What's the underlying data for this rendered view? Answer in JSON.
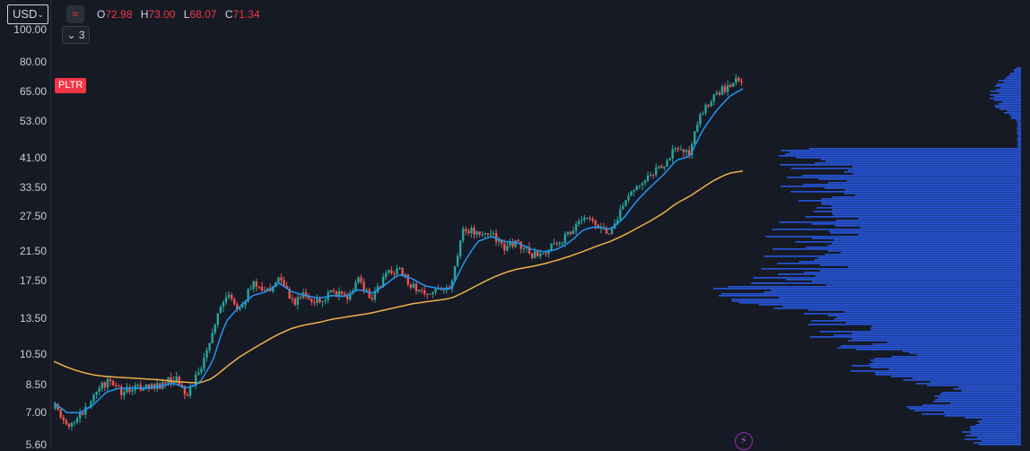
{
  "currency": {
    "label": "USD",
    "caret": "⌄"
  },
  "legend": {
    "indicator_icon": "wave-icon",
    "open_label": "O",
    "open": "72.98",
    "high_label": "H",
    "high": "73.00",
    "low_label": "L",
    "low": "68.07",
    "close_label": "C",
    "close": "71.34",
    "value_color": "#f23645"
  },
  "collapse_button": {
    "label": "3",
    "icon": "chevron-down-icon"
  },
  "symbol": {
    "label": "PLTR",
    "color": "#f23645"
  },
  "price_axis": {
    "ticks": [
      "100.00",
      "80.00",
      "65.00",
      "53.00",
      "41.00",
      "33.50",
      "27.50",
      "21.50",
      "17.50",
      "13.50",
      "10.50",
      "8.50",
      "7.00",
      "5.60"
    ],
    "scale": "log"
  },
  "colors": {
    "background": "#161a25",
    "up": "#26a69a",
    "down": "#ef5350",
    "ma_short": "#2196f3",
    "ma_long": "#f0b04b",
    "volume_profile": "#2962ff"
  },
  "replay_icon": "lightning-icon",
  "chart_data": {
    "type": "line",
    "title": "",
    "scale": "log",
    "ylim": [
      5.4,
      110
    ],
    "series": [
      {
        "name": "",
        "kind": "close",
        "values": [
          7.2,
          6.4,
          7.0,
          7.9,
          8.8,
          8.1,
          8.4,
          8.3,
          8.5,
          8.9,
          8.0,
          9.4,
          12.5,
          15.8,
          14.5,
          17.0,
          16.0,
          18.5,
          15.0,
          16.0,
          14.8,
          16.5,
          15.5,
          17.6,
          15.1,
          18.3,
          19.0,
          17.0,
          16.1,
          16.8,
          16.6,
          25.5,
          24.0,
          24.5,
          22.0,
          23.0,
          21.0,
          21.5,
          22.5,
          24.5,
          27.0,
          25.5,
          24.0,
          29.0,
          33.5,
          36.0,
          39.0,
          44.0,
          42.0,
          57.0,
          63.0,
          68.0,
          71.3
        ]
      },
      {
        "name": "",
        "kind": "ma_short",
        "values": [
          7.5,
          7.0,
          7.0,
          7.4,
          8.1,
          8.3,
          8.3,
          8.3,
          8.4,
          8.6,
          8.3,
          8.6,
          10.0,
          13.2,
          14.6,
          15.8,
          16.2,
          17.2,
          16.2,
          15.8,
          15.5,
          15.8,
          15.7,
          16.5,
          16.0,
          17.0,
          18.3,
          17.8,
          16.9,
          16.6,
          16.5,
          20.0,
          23.0,
          23.8,
          23.0,
          22.8,
          21.8,
          21.4,
          21.8,
          23.0,
          25.0,
          25.5,
          25.0,
          27.0,
          30.5,
          33.5,
          36.5,
          40.5,
          41.5,
          50.0,
          57.0,
          63.0,
          66.5
        ]
      },
      {
        "name": "",
        "kind": "ma_long",
        "values": [
          10.0,
          9.6,
          9.3,
          9.1,
          9.0,
          8.95,
          8.9,
          8.85,
          8.8,
          8.7,
          8.65,
          8.6,
          8.9,
          9.6,
          10.3,
          10.9,
          11.5,
          12.1,
          12.6,
          12.9,
          13.1,
          13.4,
          13.6,
          13.8,
          14.0,
          14.3,
          14.6,
          14.9,
          15.1,
          15.3,
          15.5,
          16.2,
          17.0,
          17.8,
          18.5,
          19.0,
          19.3,
          19.7,
          20.2,
          20.8,
          21.5,
          22.3,
          23.0,
          24.0,
          25.2,
          26.5,
          28.0,
          30.0,
          31.5,
          33.5,
          35.5,
          37.0,
          37.5
        ]
      }
    ],
    "high_low_range": [
      5.9,
      80.0
    ]
  }
}
